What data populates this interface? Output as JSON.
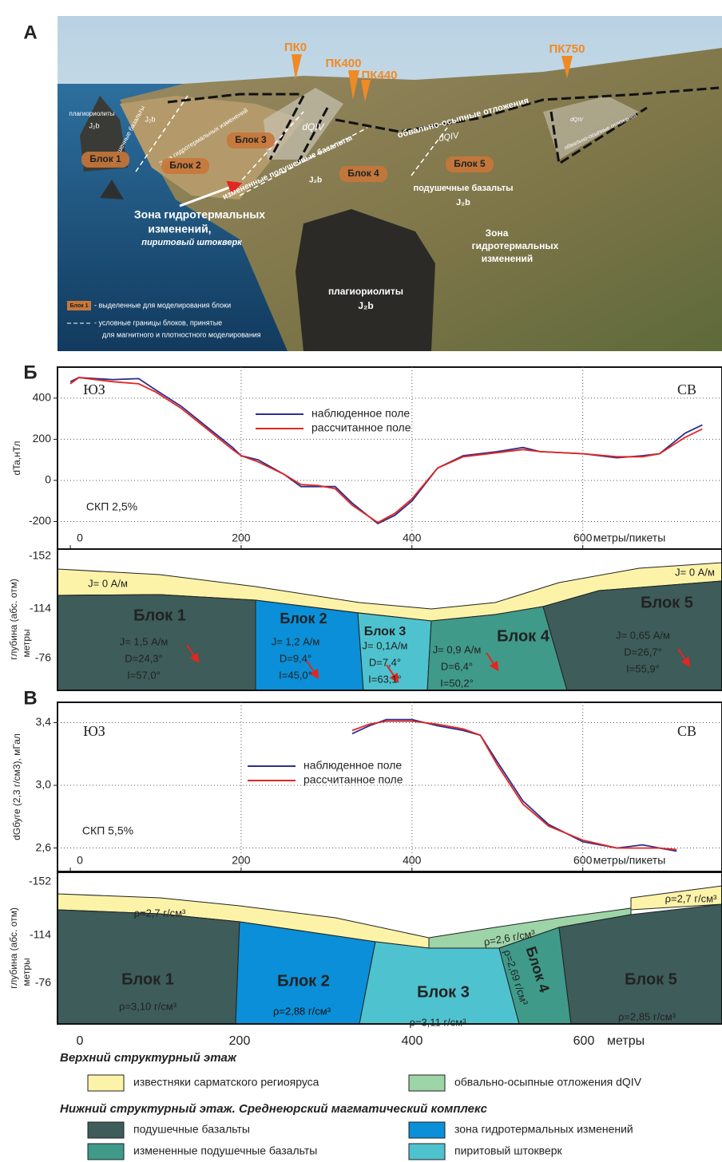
{
  "panel_labels": [
    "A",
    "Б",
    "В"
  ],
  "photo": {
    "labels": [
      "ПК0",
      "ПК400",
      "ПК440",
      "ПК750",
      "плагиориолиты",
      "J₂b",
      "подушечные базальты",
      "J₂b",
      "Зона гидротермальных изменений",
      "dQIV",
      "Блок 1",
      "Блок 2",
      "Блок 3",
      "Блок 4",
      "Блок 5",
      "измененные подушечные базальты",
      "J₂b",
      "Зона гидротермальных",
      "изменений,",
      "пиритовый штокверк",
      "обвально-осыпные отложения",
      "dQIV",
      "подушечные базальты",
      "J₂b",
      "Зона",
      "гидротермальных",
      "изменений",
      "плагиориолиты",
      "J₂b",
      "Блок 1",
      "- выделенные для моделирования блоки",
      "- условные границы блоков, принятые",
      "для магнитного и плотностного моделирования",
      "обвально-осыпные отложения",
      "dQIV"
    ]
  },
  "chart_data": [
    {
      "type": "line",
      "ylabel": "dTa,нТл",
      "xlabel": "метры/пикеты",
      "annotations": [
        "ЮЗ",
        "СВ",
        "СКП 2,5%"
      ],
      "x": [
        0,
        10,
        30,
        50,
        80,
        100,
        130,
        160,
        190,
        200,
        220,
        250,
        270,
        290,
        310,
        330,
        360,
        380,
        400,
        430,
        460,
        500,
        530,
        550,
        600,
        640,
        670,
        690,
        720,
        740
      ],
      "series": [
        {
          "name": "наблюденное поле",
          "color": "#2b2f8f",
          "values": [
            480,
            500,
            495,
            490,
            495,
            440,
            360,
            260,
            160,
            120,
            100,
            30,
            -30,
            -30,
            -30,
            -110,
            -210,
            -170,
            -100,
            60,
            120,
            140,
            160,
            140,
            130,
            110,
            120,
            130,
            230,
            270
          ]
        },
        {
          "name": "рассчитанное поле",
          "color": "#e3261f",
          "values": [
            470,
            500,
            490,
            480,
            470,
            430,
            350,
            250,
            150,
            120,
            90,
            30,
            -20,
            -25,
            -40,
            -120,
            -205,
            -160,
            -90,
            60,
            115,
            135,
            150,
            140,
            130,
            115,
            115,
            130,
            210,
            250
          ]
        }
      ],
      "xlim": [
        -15,
        763
      ],
      "xticks": [
        0,
        200,
        400,
        600
      ],
      "ylim": [
        -334,
        551
      ],
      "yticks": [
        -200,
        0,
        200,
        400
      ],
      "grid": true
    },
    {
      "type": "line",
      "ylabel": "dGбуге (2,3 г/см3), мГал",
      "xlabel": "метры/пикеты",
      "annotations": [
        "ЮЗ",
        "СВ",
        "СКП 5,5%"
      ],
      "x": [
        330,
        350,
        370,
        390,
        400,
        430,
        460,
        480,
        500,
        530,
        560,
        600,
        640,
        670,
        690,
        710
      ],
      "series": [
        {
          "name": "наблюденное поле",
          "color": "#2b2f8f",
          "values": [
            3.33,
            3.38,
            3.42,
            3.42,
            3.42,
            3.38,
            3.35,
            3.32,
            3.15,
            2.9,
            2.75,
            2.64,
            2.6,
            2.62,
            2.6,
            2.58
          ]
        },
        {
          "name": "рассчитанное поле",
          "color": "#e3261f",
          "values": [
            3.35,
            3.39,
            3.41,
            3.41,
            3.41,
            3.39,
            3.36,
            3.32,
            3.13,
            2.88,
            2.74,
            2.65,
            2.6,
            2.6,
            2.6,
            2.59
          ]
        }
      ],
      "xlim": [
        -15,
        763
      ],
      "xticks": [
        0,
        200,
        400,
        600
      ],
      "ylim": [
        2.45,
        3.53
      ],
      "yticks": [
        {
          "value": 3.4,
          "label": "3,4"
        },
        {
          "value": 3.0,
          "label": "3,0"
        },
        {
          "value": 2.6,
          "label": "2,6"
        }
      ],
      "grid": true
    }
  ],
  "model_b": {
    "ylabel": "глубина (абс. отм)",
    "ylabel2": "метры",
    "depth_ticks": [
      "-152",
      "-114",
      "-76"
    ],
    "layers": [
      "J= 0 А/м",
      "J= 0 А/м"
    ],
    "blocks": [
      {
        "name": "Блок 1",
        "params": [
          "J= 1,5 А/м",
          "D=24,3°",
          "I=57,0°"
        ]
      },
      {
        "name": "Блок 2",
        "params": [
          "J= 1,2 А/м",
          "D=9,4°",
          "I=45,0°"
        ]
      },
      {
        "name": "Блок 3",
        "params": [
          "J= 0,1А/м",
          "D=7,4°",
          "I=63,1°"
        ]
      },
      {
        "name": "Блок 4",
        "params": [
          "J= 0,9 А/м",
          "D=6,4°",
          "I=50,2°"
        ]
      },
      {
        "name": "Блок 5",
        "params": [
          "J= 0,65  А/м",
          "D=26,7°",
          "I=55,9°"
        ]
      }
    ]
  },
  "model_v": {
    "ylabel": "глубина (абс. отм)",
    "ylabel2": "метры",
    "depth_ticks": [
      "-152",
      "-114",
      "-76"
    ],
    "layers": [
      "ρ=2,7 г/см³",
      "ρ=2,7 г/см³",
      "ρ=2,6 г/см³"
    ],
    "blocks": [
      {
        "name": "Блок 1",
        "params": [
          "ρ=3,10 г/см³"
        ]
      },
      {
        "name": "Блок 2",
        "params": [
          "ρ=2,88 г/см³"
        ]
      },
      {
        "name": "Блок 3",
        "params": [
          "ρ=3,11 г/см³"
        ]
      },
      {
        "name": "Блок 4",
        "params": [
          "ρ=2,69 г/см³"
        ]
      },
      {
        "name": "Блок 5",
        "params": [
          "ρ=2,85 г/см³"
        ]
      }
    ],
    "x_labels": [
      "0",
      "200",
      "400",
      "600",
      "метры"
    ]
  },
  "legend": {
    "upper_heading": "Верхний структурный этаж",
    "upper_items": [
      "известняки сарматского региояруса",
      "обвально-осыпные отложения dQIV"
    ],
    "lower_heading": "Нижний структурный этаж. Среднеюрский магматический комплекс",
    "lower_items": [
      "подушечные базальты",
      "измененные подушечные базальты",
      "зона гидротермальных изменений",
      "пиритовый штокверк"
    ]
  }
}
